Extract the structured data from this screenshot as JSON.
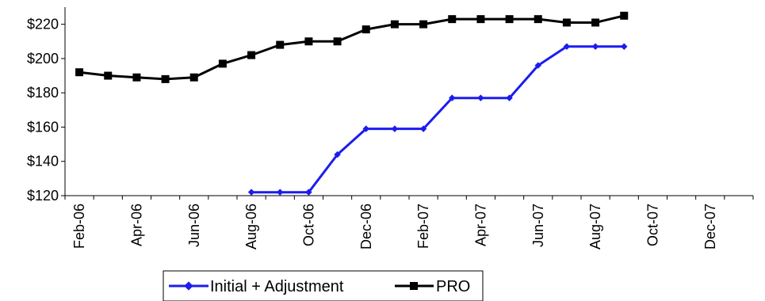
{
  "chart_data": {
    "type": "line",
    "title": "",
    "xlabel": "",
    "ylabel": "",
    "x_tick_labels": [
      "Feb-06",
      "Apr-06",
      "Jun-06",
      "Aug-06",
      "Oct-06",
      "Dec-06",
      "Feb-07",
      "Apr-07",
      "Jun-07",
      "Aug-07",
      "Oct-07",
      "Dec-07"
    ],
    "ylim": [
      120,
      230
    ],
    "y_ticks": [
      120,
      140,
      160,
      180,
      200,
      220
    ],
    "y_tick_labels": [
      "$120",
      "$140",
      "$160",
      "$180",
      "$200",
      "$220"
    ],
    "grid": false,
    "legend_position": "bottom-center",
    "x": [
      "Feb-06",
      "Mar-06",
      "Apr-06",
      "May-06",
      "Jun-06",
      "Jul-06",
      "Aug-06",
      "Sep-06",
      "Oct-06",
      "Nov-06",
      "Dec-06",
      "Jan-07",
      "Feb-07",
      "Mar-07",
      "Apr-07",
      "May-07",
      "Jun-07",
      "Jul-07",
      "Aug-07",
      "Sep-07"
    ],
    "series": [
      {
        "name": "Initial + Adjustment",
        "color": "#1c1cf0",
        "marker": "diamond",
        "values": [
          null,
          null,
          null,
          null,
          null,
          null,
          122,
          122,
          122,
          144,
          159,
          159,
          159,
          177,
          177,
          177,
          196,
          207,
          207,
          207
        ]
      },
      {
        "name": "PRO",
        "color": "#000000",
        "marker": "square",
        "values": [
          192,
          190,
          189,
          188,
          189,
          197,
          202,
          208,
          210,
          210,
          217,
          220,
          220,
          223,
          223,
          223,
          223,
          221,
          221,
          225
        ]
      }
    ]
  }
}
